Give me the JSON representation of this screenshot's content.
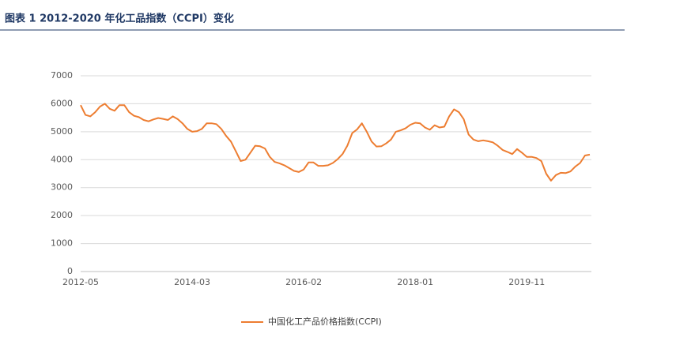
{
  "chart_data": {
    "type": "line",
    "title": "图表 1 2012-2020 年化工品指数（CCPI）变化",
    "categories": [
      "2012-05",
      null,
      null,
      null,
      null,
      null,
      null,
      null,
      null,
      null,
      null,
      null,
      null,
      null,
      null,
      null,
      null,
      null,
      null,
      null,
      null,
      null,
      null,
      "2014-03",
      null,
      null,
      null,
      null,
      null,
      null,
      null,
      null,
      null,
      null,
      null,
      null,
      null,
      null,
      null,
      null,
      null,
      null,
      null,
      null,
      null,
      null,
      "2016-02",
      null,
      null,
      null,
      null,
      null,
      null,
      null,
      null,
      null,
      null,
      null,
      null,
      null,
      null,
      null,
      null,
      null,
      null,
      null,
      null,
      null,
      null,
      "2018-01",
      null,
      null,
      null,
      null,
      null,
      null,
      null,
      null,
      null,
      null,
      null,
      null,
      null,
      null,
      null,
      null,
      null,
      null,
      null,
      null,
      null,
      null,
      "2019-11",
      null,
      null,
      null,
      null,
      null,
      null,
      null,
      null,
      null,
      null,
      null,
      null,
      null
    ],
    "series": [
      {
        "name": "中国化工产品价格指数(CCPI)",
        "color": "#ed7d31",
        "values": [
          5950,
          5600,
          5550,
          5700,
          5900,
          6000,
          5820,
          5750,
          5950,
          5950,
          5700,
          5570,
          5520,
          5420,
          5370,
          5440,
          5490,
          5460,
          5420,
          5550,
          5450,
          5300,
          5100,
          5000,
          5020,
          5100,
          5300,
          5300,
          5270,
          5100,
          4850,
          4650,
          4300,
          3950,
          4000,
          4250,
          4500,
          4480,
          4400,
          4100,
          3920,
          3870,
          3800,
          3700,
          3600,
          3560,
          3650,
          3900,
          3900,
          3780,
          3780,
          3800,
          3880,
          4020,
          4200,
          4500,
          4950,
          5080,
          5300,
          5000,
          4650,
          4470,
          4480,
          4580,
          4720,
          5000,
          5050,
          5120,
          5250,
          5320,
          5300,
          5150,
          5070,
          5230,
          5150,
          5180,
          5550,
          5800,
          5700,
          5450,
          4900,
          4720,
          4660,
          4690,
          4660,
          4620,
          4500,
          4350,
          4280,
          4200,
          4380,
          4250,
          4100,
          4100,
          4060,
          3950,
          3500,
          3250,
          3450,
          3530,
          3520,
          3580,
          3750,
          3880,
          4150,
          4180
        ]
      }
    ],
    "ylim": [
      0,
      7000
    ],
    "yticks": [
      0,
      1000,
      2000,
      3000,
      4000,
      5000,
      6000,
      7000
    ],
    "grid": true,
    "legend": "bottom"
  }
}
